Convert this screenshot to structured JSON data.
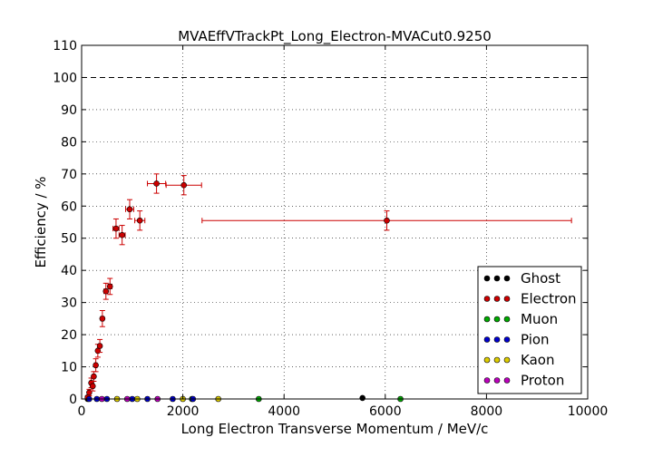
{
  "chart_data": {
    "type": "scatter",
    "title": "MVAEffVTrackPt_Long_Electron-MVACut0.9250",
    "xlabel": "Long Electron Transverse Momentum / MeV/c",
    "ylabel": "Efficiency / %",
    "xlim": [
      0,
      10000
    ],
    "ylim": [
      0,
      110
    ],
    "x_ticks": [
      "0",
      "2000",
      "4000",
      "6000",
      "8000",
      "10000"
    ],
    "y_ticks": [
      "0",
      "10",
      "20",
      "30",
      "40",
      "50",
      "60",
      "70",
      "80",
      "90",
      "100",
      "110"
    ],
    "grid": true,
    "reference_line_y": 100,
    "legend_position": "lower-right",
    "series": [
      {
        "name": "Ghost",
        "color": "#000000",
        "points": [
          {
            "x": 120,
            "y": 0
          },
          {
            "x": 5550,
            "y": 0.3
          }
        ]
      },
      {
        "name": "Electron",
        "color": "#cc0000",
        "points": [
          {
            "x": 120,
            "y": 0.5,
            "xerr": 25,
            "yerr": 0.5
          },
          {
            "x": 150,
            "y": 2.0,
            "xerr": 25,
            "yerr": 1.0
          },
          {
            "x": 190,
            "y": 5.0,
            "xerr": 25,
            "yerr": 1.5
          },
          {
            "x": 220,
            "y": 4.0,
            "xerr": 25,
            "yerr": 1.5
          },
          {
            "x": 240,
            "y": 7.0,
            "xerr": 25,
            "yerr": 1.5
          },
          {
            "x": 280,
            "y": 10.5,
            "xerr": 25,
            "yerr": 2.0
          },
          {
            "x": 320,
            "y": 15.0,
            "xerr": 25,
            "yerr": 2.0
          },
          {
            "x": 360,
            "y": 16.5,
            "xerr": 25,
            "yerr": 2.0
          },
          {
            "x": 410,
            "y": 25.0,
            "xerr": 30,
            "yerr": 2.5
          },
          {
            "x": 480,
            "y": 33.5,
            "xerr": 40,
            "yerr": 2.5
          },
          {
            "x": 560,
            "y": 35.0,
            "xerr": 40,
            "yerr": 2.5
          },
          {
            "x": 680,
            "y": 53.0,
            "xerr": 60,
            "yerr": 3.0
          },
          {
            "x": 800,
            "y": 51.0,
            "xerr": 60,
            "yerr": 3.0
          },
          {
            "x": 950,
            "y": 59.0,
            "xerr": 80,
            "yerr": 3.0
          },
          {
            "x": 1150,
            "y": 55.5,
            "xerr": 100,
            "yerr": 3.0
          },
          {
            "x": 1480,
            "y": 67.0,
            "xerr": 180,
            "yerr": 3.0
          },
          {
            "x": 2020,
            "y": 66.5,
            "xerr": 350,
            "yerr": 3.0
          },
          {
            "x": 6030,
            "y": 55.5,
            "xerr": 3650,
            "yerr": 3.0
          }
        ]
      },
      {
        "name": "Muon",
        "color": "#00aa00",
        "points": [
          {
            "x": 2180,
            "y": 0
          },
          {
            "x": 3500,
            "y": 0
          },
          {
            "x": 6300,
            "y": 0
          }
        ]
      },
      {
        "name": "Pion",
        "color": "#0000cc",
        "points": [
          {
            "x": 150,
            "y": 0
          },
          {
            "x": 300,
            "y": 0
          },
          {
            "x": 500,
            "y": 0
          },
          {
            "x": 1000,
            "y": 0
          },
          {
            "x": 1300,
            "y": 0
          },
          {
            "x": 1800,
            "y": 0
          },
          {
            "x": 2200,
            "y": 0
          }
        ]
      },
      {
        "name": "Kaon",
        "color": "#ddcc00",
        "points": [
          {
            "x": 700,
            "y": 0
          },
          {
            "x": 1100,
            "y": 0
          },
          {
            "x": 2000,
            "y": 0
          },
          {
            "x": 2700,
            "y": 0
          }
        ]
      },
      {
        "name": "Proton",
        "color": "#bb00bb",
        "points": [
          {
            "x": 400,
            "y": 0
          },
          {
            "x": 900,
            "y": 0
          },
          {
            "x": 1500,
            "y": 0
          }
        ]
      }
    ]
  }
}
